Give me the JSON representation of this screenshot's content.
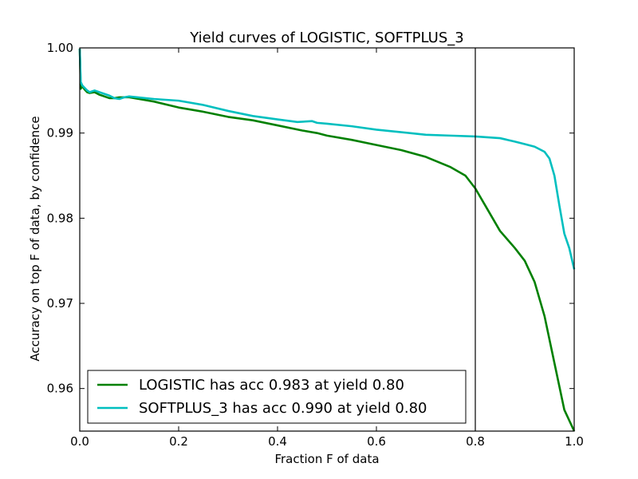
{
  "chart_data": {
    "type": "line",
    "title": "Yield curves of LOGISTIC, SOFTPLUS_3",
    "xlabel": "Fraction F of data",
    "ylabel": "Accuracy on top F of data, by confidence",
    "xlim": [
      0.0,
      1.0
    ],
    "ylim": [
      0.955,
      1.0
    ],
    "x_ticks": [
      "0.0",
      "0.2",
      "0.4",
      "0.6",
      "0.8",
      "1.0"
    ],
    "y_ticks": [
      "0.96",
      "0.97",
      "0.98",
      "0.99",
      "1.00"
    ],
    "x_tick_values": [
      0.0,
      0.2,
      0.4,
      0.6,
      0.8,
      1.0
    ],
    "y_tick_values": [
      0.96,
      0.97,
      0.98,
      0.99,
      1.0
    ],
    "vline_x": 0.8,
    "grid": false,
    "legend_position": "lower-left",
    "series": [
      {
        "name": "LOGISTIC has acc 0.983 at yield 0.80",
        "color": "#008000",
        "points": [
          [
            0.0,
            0.9999
          ],
          [
            0.002,
            0.9952
          ],
          [
            0.005,
            0.9955
          ],
          [
            0.01,
            0.9951
          ],
          [
            0.015,
            0.9948
          ],
          [
            0.02,
            0.9947
          ],
          [
            0.03,
            0.9948
          ],
          [
            0.04,
            0.9945
          ],
          [
            0.05,
            0.9943
          ],
          [
            0.06,
            0.9941
          ],
          [
            0.07,
            0.9941
          ],
          [
            0.08,
            0.9942
          ],
          [
            0.1,
            0.9942
          ],
          [
            0.12,
            0.994
          ],
          [
            0.15,
            0.9937
          ],
          [
            0.2,
            0.993
          ],
          [
            0.25,
            0.9925
          ],
          [
            0.3,
            0.9919
          ],
          [
            0.35,
            0.9915
          ],
          [
            0.4,
            0.9909
          ],
          [
            0.45,
            0.9903
          ],
          [
            0.48,
            0.99
          ],
          [
            0.5,
            0.9897
          ],
          [
            0.55,
            0.9892
          ],
          [
            0.6,
            0.9886
          ],
          [
            0.65,
            0.988
          ],
          [
            0.7,
            0.9872
          ],
          [
            0.75,
            0.986
          ],
          [
            0.78,
            0.985
          ],
          [
            0.8,
            0.9835
          ],
          [
            0.82,
            0.9815
          ],
          [
            0.85,
            0.9785
          ],
          [
            0.88,
            0.9765
          ],
          [
            0.9,
            0.975
          ],
          [
            0.92,
            0.9725
          ],
          [
            0.94,
            0.9685
          ],
          [
            0.96,
            0.963
          ],
          [
            0.98,
            0.9575
          ],
          [
            1.0,
            0.955
          ]
        ]
      },
      {
        "name": "SOFTPLUS_3 has acc 0.990 at yield 0.80",
        "color": "#00bfbf",
        "points": [
          [
            0.0,
            0.9999
          ],
          [
            0.002,
            0.996
          ],
          [
            0.005,
            0.9956
          ],
          [
            0.01,
            0.9953
          ],
          [
            0.015,
            0.995
          ],
          [
            0.02,
            0.9948
          ],
          [
            0.03,
            0.995
          ],
          [
            0.04,
            0.9948
          ],
          [
            0.05,
            0.9946
          ],
          [
            0.06,
            0.9944
          ],
          [
            0.07,
            0.9941
          ],
          [
            0.08,
            0.994
          ],
          [
            0.09,
            0.9942
          ],
          [
            0.1,
            0.9943
          ],
          [
            0.15,
            0.994
          ],
          [
            0.2,
            0.9938
          ],
          [
            0.25,
            0.9933
          ],
          [
            0.3,
            0.9926
          ],
          [
            0.35,
            0.992
          ],
          [
            0.4,
            0.9916
          ],
          [
            0.44,
            0.9913
          ],
          [
            0.47,
            0.9914
          ],
          [
            0.48,
            0.9912
          ],
          [
            0.5,
            0.9911
          ],
          [
            0.55,
            0.9908
          ],
          [
            0.6,
            0.9904
          ],
          [
            0.65,
            0.9901
          ],
          [
            0.7,
            0.9898
          ],
          [
            0.75,
            0.9897
          ],
          [
            0.8,
            0.9896
          ],
          [
            0.85,
            0.9894
          ],
          [
            0.88,
            0.989
          ],
          [
            0.9,
            0.9887
          ],
          [
            0.92,
            0.9884
          ],
          [
            0.94,
            0.9878
          ],
          [
            0.95,
            0.987
          ],
          [
            0.96,
            0.985
          ],
          [
            0.97,
            0.9815
          ],
          [
            0.98,
            0.9782
          ],
          [
            0.99,
            0.9765
          ],
          [
            1.0,
            0.974
          ]
        ]
      }
    ]
  }
}
